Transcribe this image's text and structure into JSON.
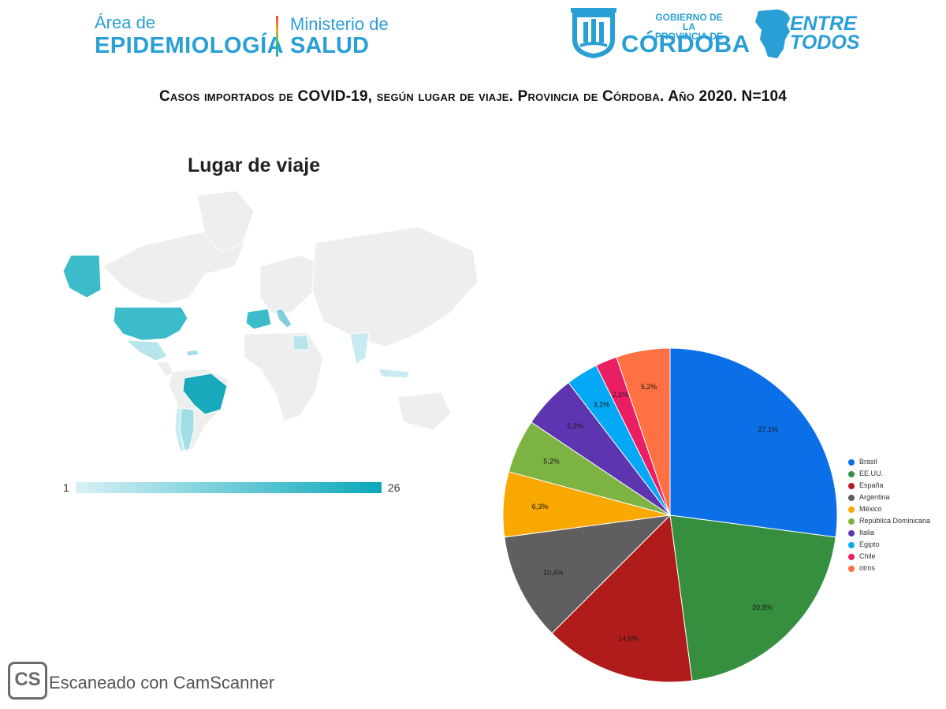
{
  "header": {
    "left_logo": {
      "line1": "Área de",
      "line2": "EPIDEMIOLOGÍA",
      "line3": "Ministerio de",
      "line4": "SALUD"
    },
    "right_logo": {
      "gobierno_line1": "GOBIERNO DE LA",
      "gobierno_line2": "PROVINCIA DE",
      "cordoba": "CÓRDOBA",
      "entre": "ENTRE",
      "todos": "TODOS"
    }
  },
  "title": "Casos importados de COVID-19, según lugar de viaje. Provincia de Córdoba. Año 2020. N=104",
  "map": {
    "title": "Lugar de viaje",
    "scale_min": "1",
    "scale_max": "26",
    "colors": {
      "low": "#d8f1f6",
      "high": "#0aa8ba",
      "base": "#eeeeee"
    }
  },
  "chart_data": {
    "type": "pie",
    "slices": [
      {
        "label": "Brasil",
        "value": 27.1,
        "value_label": "27,1%",
        "color": "#0b6fe8"
      },
      {
        "label": "EE.UU.",
        "value": 20.8,
        "value_label": "20,8%",
        "color": "#368f3e"
      },
      {
        "label": "España",
        "value": 14.6,
        "value_label": "14,6%",
        "color": "#b01c1c"
      },
      {
        "label": "Argentina",
        "value": 10.4,
        "value_label": "10,4%",
        "color": "#5f5f5f"
      },
      {
        "label": "México",
        "value": 6.3,
        "value_label": "6,3%",
        "color": "#f9a800"
      },
      {
        "label": "República Dominicana",
        "value": 5.2,
        "value_label": "5,2%",
        "color": "#7cb342"
      },
      {
        "label": "Italia",
        "value": 5.2,
        "value_label": "5,2%",
        "color": "#5e35b1"
      },
      {
        "label": "Egipto",
        "value": 3.1,
        "value_label": "3,1%",
        "color": "#03a9f4"
      },
      {
        "label": "Chile",
        "value": 2.1,
        "value_label": "2,1%",
        "color": "#e91e63"
      },
      {
        "label": "otros",
        "value": 5.2,
        "value_label": "5,2%",
        "color": "#ff7043"
      }
    ],
    "legend_position": "right",
    "start_angle_deg": 0,
    "direction": "clockwise"
  },
  "footer": {
    "badge": "CS",
    "text": "Escaneado con CamScanner"
  }
}
